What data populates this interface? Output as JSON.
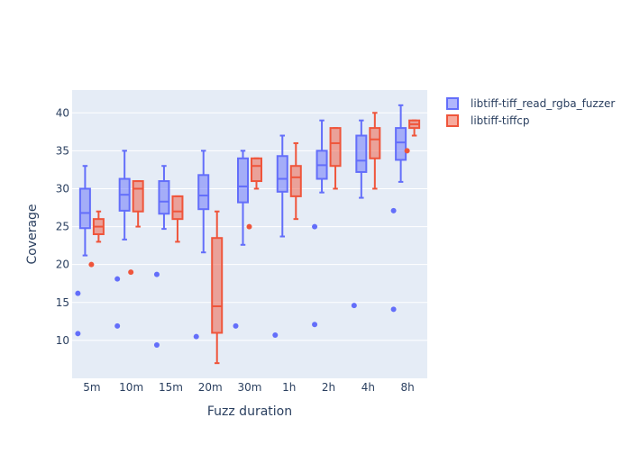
{
  "chart_data": {
    "type": "box",
    "xlabel": "Fuzz duration",
    "ylabel": "Coverage",
    "categories": [
      "5m",
      "10m",
      "15m",
      "20m",
      "30m",
      "1h",
      "2h",
      "4h",
      "8h"
    ],
    "y_ticks": [
      10,
      15,
      20,
      25,
      30,
      35,
      40
    ],
    "ylim": [
      5.0,
      43.0
    ],
    "grid": true,
    "legend_position": "top-right",
    "series": [
      {
        "name": "libtiff-tiff_read_rgba_fuzzer",
        "color": "#636efa",
        "boxes": [
          {
            "lower_fence": 21.2,
            "q1": 24.8,
            "median": 26.8,
            "q3": 30.0,
            "upper_fence": 33.0,
            "outliers": [
              16.2,
              10.9
            ]
          },
          {
            "lower_fence": 23.3,
            "q1": 27.1,
            "median": 29.2,
            "q3": 31.3,
            "upper_fence": 35.0,
            "outliers": [
              18.1,
              11.9
            ]
          },
          {
            "lower_fence": 24.7,
            "q1": 26.7,
            "median": 28.3,
            "q3": 31.0,
            "upper_fence": 33.0,
            "outliers": [
              18.7,
              9.4
            ]
          },
          {
            "lower_fence": 21.6,
            "q1": 27.3,
            "median": 29.1,
            "q3": 31.8,
            "upper_fence": 35.0,
            "outliers": [
              10.5
            ]
          },
          {
            "lower_fence": 22.6,
            "q1": 28.2,
            "median": 30.3,
            "q3": 34.0,
            "upper_fence": 35.0,
            "outliers": [
              11.9
            ]
          },
          {
            "lower_fence": 23.7,
            "q1": 29.6,
            "median": 31.3,
            "q3": 34.3,
            "upper_fence": 37.0,
            "outliers": [
              10.7
            ]
          },
          {
            "lower_fence": 29.5,
            "q1": 31.3,
            "median": 33.1,
            "q3": 35.0,
            "upper_fence": 39.0,
            "outliers": [
              25.0,
              12.1
            ]
          },
          {
            "lower_fence": 28.8,
            "q1": 32.2,
            "median": 33.7,
            "q3": 37.0,
            "upper_fence": 39.0,
            "outliers": [
              14.6
            ]
          },
          {
            "lower_fence": 30.9,
            "q1": 33.8,
            "median": 36.1,
            "q3": 38.0,
            "upper_fence": 41.0,
            "outliers": [
              27.1,
              14.1
            ]
          }
        ]
      },
      {
        "name": "libtiff-tiffcp",
        "color": "#ef553b",
        "boxes": [
          {
            "lower_fence": 23.0,
            "q1": 24.0,
            "median": 25.0,
            "q3": 26.0,
            "upper_fence": 27.0,
            "outliers": [
              20.0
            ]
          },
          {
            "lower_fence": 25.0,
            "q1": 27.0,
            "median": 30.0,
            "q3": 31.0,
            "upper_fence": 31.0,
            "outliers": [
              19.0
            ]
          },
          {
            "lower_fence": 23.0,
            "q1": 26.0,
            "median": 27.0,
            "q3": 29.0,
            "upper_fence": 29.0,
            "outliers": []
          },
          {
            "lower_fence": 7.0,
            "q1": 11.0,
            "median": 14.5,
            "q3": 23.5,
            "upper_fence": 27.0,
            "outliers": []
          },
          {
            "lower_fence": 30.0,
            "q1": 31.0,
            "median": 33.0,
            "q3": 34.0,
            "upper_fence": 34.0,
            "outliers": [
              25.0
            ]
          },
          {
            "lower_fence": 26.0,
            "q1": 29.0,
            "median": 31.5,
            "q3": 33.0,
            "upper_fence": 36.0,
            "outliers": []
          },
          {
            "lower_fence": 30.0,
            "q1": 33.0,
            "median": 36.0,
            "q3": 38.0,
            "upper_fence": 38.0,
            "outliers": []
          },
          {
            "lower_fence": 30.0,
            "q1": 34.0,
            "median": 36.5,
            "q3": 38.0,
            "upper_fence": 40.0,
            "outliers": []
          },
          {
            "lower_fence": 37.0,
            "q1": 38.0,
            "median": 38.5,
            "q3": 39.0,
            "upper_fence": 39.0,
            "outliers": [
              35.0
            ]
          }
        ]
      }
    ]
  }
}
